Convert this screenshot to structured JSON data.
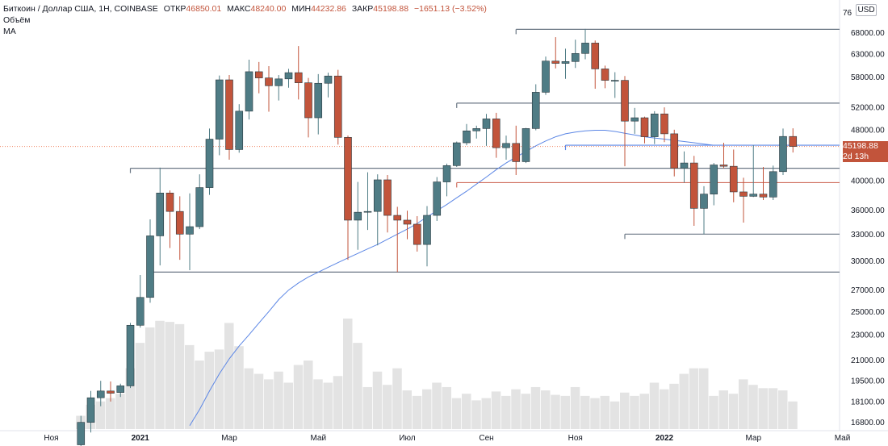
{
  "legend": {
    "symbol": "Биткоин / Доллар США, 1Н, COINBASE",
    "open_label": "ОТКР",
    "open_value": "46850.01",
    "high_label": "МАКС",
    "high_value": "48240.00",
    "low_label": "МИН",
    "low_value": "44232.86",
    "close_label": "ЗАКР",
    "close_value": "45198.88",
    "change_value": "−1651.13 (−3.52%)",
    "volume_label": "Объём",
    "ma_label": "МА"
  },
  "currency_button": "USD",
  "price_tag": {
    "price": "45198.88",
    "countdown": "2d 13h"
  },
  "colors": {
    "up": "#4f7c85",
    "down": "#c2543b",
    "ma": "#5b86e5",
    "volume": "#e3e3e3",
    "hline_gray": "#6b7785",
    "hline_red": "#d07060",
    "current_price": "#f08866"
  },
  "chart_data": {
    "type": "candlestick",
    "timeframe": "1W",
    "y_axis": {
      "scale": "log",
      "ticks": [
        16800,
        18100,
        19500,
        21000,
        23000,
        25000,
        27000,
        30000,
        33000,
        36000,
        40000,
        44000,
        48000,
        52000,
        58000,
        63000,
        68000
      ],
      "tick_labels": [
        "16800.00",
        "18100.00",
        "19500.00",
        "21000.00",
        "23000.00",
        "25000.00",
        "27000.00",
        "30000.00",
        "33000.00",
        "36000.00",
        "40000.00",
        "44000.00",
        "48000.00",
        "52000.00",
        "58000.00",
        "63000.00",
        "68000.00"
      ],
      "top_partial_label": "76",
      "range": [
        16400,
        76000
      ]
    },
    "x_axis": {
      "tick_labels": [
        "Ноя",
        "2021",
        "Мар",
        "Май",
        "Июл",
        "Сен",
        "Ноя",
        "2022",
        "Мар",
        "Май"
      ],
      "tick_weeks": [
        4,
        13,
        22,
        31,
        40,
        48,
        57,
        66,
        75,
        84
      ]
    },
    "candles": [
      {
        "o": 15500,
        "h": 17200,
        "l": 15300,
        "c": 16800
      },
      {
        "o": 16800,
        "h": 18800,
        "l": 16200,
        "c": 18350
      },
      {
        "o": 18350,
        "h": 19500,
        "l": 17800,
        "c": 18800
      },
      {
        "o": 18800,
        "h": 19450,
        "l": 18100,
        "c": 18650
      },
      {
        "o": 18700,
        "h": 19300,
        "l": 18400,
        "c": 19150
      },
      {
        "o": 19150,
        "h": 24000,
        "l": 19000,
        "c": 23800
      },
      {
        "o": 23800,
        "h": 28500,
        "l": 23600,
        "c": 26300
      },
      {
        "o": 26300,
        "h": 34800,
        "l": 25800,
        "c": 32800
      },
      {
        "o": 32800,
        "h": 41900,
        "l": 29500,
        "c": 38250
      },
      {
        "o": 38250,
        "h": 38600,
        "l": 31400,
        "c": 35800
      },
      {
        "o": 35800,
        "h": 37800,
        "l": 30100,
        "c": 33000
      },
      {
        "o": 33000,
        "h": 38200,
        "l": 29000,
        "c": 33900
      },
      {
        "o": 33900,
        "h": 40900,
        "l": 33600,
        "c": 39000
      },
      {
        "o": 39000,
        "h": 48200,
        "l": 38000,
        "c": 46400
      },
      {
        "o": 46400,
        "h": 58300,
        "l": 43800,
        "c": 57400
      },
      {
        "o": 57400,
        "h": 58400,
        "l": 43100,
        "c": 44700
      },
      {
        "o": 44700,
        "h": 52600,
        "l": 44200,
        "c": 51300
      },
      {
        "o": 51300,
        "h": 61700,
        "l": 49800,
        "c": 59100
      },
      {
        "o": 59100,
        "h": 61200,
        "l": 54700,
        "c": 57800
      },
      {
        "o": 57800,
        "h": 60300,
        "l": 51200,
        "c": 56200
      },
      {
        "o": 56200,
        "h": 58400,
        "l": 53300,
        "c": 57600
      },
      {
        "o": 57600,
        "h": 59700,
        "l": 55800,
        "c": 58900
      },
      {
        "o": 58900,
        "h": 64800,
        "l": 53500,
        "c": 56800
      },
      {
        "o": 56800,
        "h": 57800,
        "l": 46700,
        "c": 50100
      },
      {
        "o": 50100,
        "h": 58600,
        "l": 47200,
        "c": 56700
      },
      {
        "o": 56700,
        "h": 58900,
        "l": 53900,
        "c": 58200
      },
      {
        "o": 58200,
        "h": 59500,
        "l": 45500,
        "c": 46700
      },
      {
        "o": 46700,
        "h": 47000,
        "l": 30100,
        "c": 34700
      },
      {
        "o": 34700,
        "h": 39800,
        "l": 31200,
        "c": 35700
      },
      {
        "o": 35700,
        "h": 41200,
        "l": 33500,
        "c": 35800
      },
      {
        "o": 35800,
        "h": 40900,
        "l": 31700,
        "c": 40100
      },
      {
        "o": 40100,
        "h": 40800,
        "l": 33200,
        "c": 35300
      },
      {
        "o": 35300,
        "h": 36400,
        "l": 28800,
        "c": 34700
      },
      {
        "o": 34700,
        "h": 35900,
        "l": 32400,
        "c": 34200
      },
      {
        "o": 34200,
        "h": 35200,
        "l": 31000,
        "c": 31800
      },
      {
        "o": 31800,
        "h": 36500,
        "l": 29400,
        "c": 35300
      },
      {
        "o": 35300,
        "h": 40500,
        "l": 34600,
        "c": 39800
      },
      {
        "o": 39800,
        "h": 42500,
        "l": 37800,
        "c": 42200
      },
      {
        "o": 42200,
        "h": 46000,
        "l": 42000,
        "c": 45800
      },
      {
        "o": 45800,
        "h": 49000,
        "l": 45400,
        "c": 47800
      },
      {
        "o": 47800,
        "h": 48700,
        "l": 46500,
        "c": 48200
      },
      {
        "o": 48200,
        "h": 50800,
        "l": 45300,
        "c": 49900
      },
      {
        "o": 49900,
        "h": 51000,
        "l": 43400,
        "c": 45000
      },
      {
        "o": 45000,
        "h": 47000,
        "l": 43100,
        "c": 45700
      },
      {
        "o": 45700,
        "h": 48700,
        "l": 40800,
        "c": 42800
      },
      {
        "o": 42800,
        "h": 48300,
        "l": 42600,
        "c": 48200
      },
      {
        "o": 48200,
        "h": 56500,
        "l": 47900,
        "c": 54900
      },
      {
        "o": 54900,
        "h": 62400,
        "l": 54400,
        "c": 61400
      },
      {
        "o": 61400,
        "h": 66900,
        "l": 59800,
        "c": 60900
      },
      {
        "o": 60900,
        "h": 64200,
        "l": 57600,
        "c": 61300
      },
      {
        "o": 61300,
        "h": 66300,
        "l": 59900,
        "c": 63100
      },
      {
        "o": 63100,
        "h": 68900,
        "l": 61800,
        "c": 65500
      },
      {
        "o": 65500,
        "h": 66100,
        "l": 55600,
        "c": 59700
      },
      {
        "o": 59700,
        "h": 60400,
        "l": 55700,
        "c": 57300
      },
      {
        "o": 57300,
        "h": 59000,
        "l": 53800,
        "c": 57300
      },
      {
        "o": 57300,
        "h": 58200,
        "l": 42100,
        "c": 49500
      },
      {
        "o": 49500,
        "h": 51900,
        "l": 47300,
        "c": 50100
      },
      {
        "o": 50100,
        "h": 50300,
        "l": 45700,
        "c": 46800
      },
      {
        "o": 46800,
        "h": 51300,
        "l": 45600,
        "c": 50800
      },
      {
        "o": 50800,
        "h": 52000,
        "l": 45900,
        "c": 47300
      },
      {
        "o": 47300,
        "h": 48000,
        "l": 40600,
        "c": 41800
      },
      {
        "o": 41800,
        "h": 44400,
        "l": 39700,
        "c": 42600
      },
      {
        "o": 42600,
        "h": 43700,
        "l": 34000,
        "c": 36200
      },
      {
        "o": 36200,
        "h": 39200,
        "l": 33000,
        "c": 38100
      },
      {
        "o": 38100,
        "h": 42600,
        "l": 36600,
        "c": 42300
      },
      {
        "o": 42300,
        "h": 45800,
        "l": 41800,
        "c": 42100
      },
      {
        "o": 42100,
        "h": 44700,
        "l": 37000,
        "c": 38400
      },
      {
        "o": 38400,
        "h": 40400,
        "l": 34400,
        "c": 37800
      },
      {
        "o": 37800,
        "h": 45400,
        "l": 37700,
        "c": 38100
      },
      {
        "o": 38100,
        "h": 42000,
        "l": 37300,
        "c": 37700
      },
      {
        "o": 37700,
        "h": 42200,
        "l": 37300,
        "c": 41300
      },
      {
        "o": 41300,
        "h": 48200,
        "l": 40800,
        "c": 46850
      },
      {
        "o": 46850,
        "h": 48240,
        "l": 44232.86,
        "c": 45198.88
      }
    ],
    "volume_relative": [
      0.12,
      0.22,
      0.25,
      0.28,
      0.32,
      0.55,
      0.78,
      0.92,
      0.98,
      0.97,
      0.95,
      0.76,
      0.62,
      0.7,
      0.72,
      0.96,
      0.75,
      0.55,
      0.5,
      0.45,
      0.52,
      0.42,
      0.58,
      0.62,
      0.45,
      0.42,
      0.48,
      1.0,
      0.78,
      0.38,
      0.52,
      0.4,
      0.55,
      0.35,
      0.3,
      0.36,
      0.42,
      0.38,
      0.28,
      0.32,
      0.26,
      0.28,
      0.34,
      0.3,
      0.36,
      0.32,
      0.38,
      0.35,
      0.31,
      0.3,
      0.38,
      0.3,
      0.28,
      0.3,
      0.25,
      0.33,
      0.3,
      0.32,
      0.42,
      0.36,
      0.41,
      0.5,
      0.55,
      0.55,
      0.3,
      0.35,
      0.32,
      0.45,
      0.4,
      0.37,
      0.37,
      0.35,
      0.25
    ],
    "horizontal_levels": [
      {
        "price": 68800,
        "from": 51,
        "to": 86,
        "color": "gray"
      },
      {
        "price": 52800,
        "from": 45,
        "to": 86,
        "color": "gray"
      },
      {
        "price": 41800,
        "from": 12,
        "to": 86,
        "color": "gray"
      },
      {
        "price": 28800,
        "from": 14,
        "to": 86,
        "color": "gray"
      },
      {
        "price": 33000,
        "from": 62,
        "to": 86,
        "color": "gray"
      },
      {
        "price": 39700,
        "from": 45,
        "to": 86,
        "color": "red"
      },
      {
        "price": 45400,
        "from": 56,
        "to": 86,
        "color": "blue"
      }
    ],
    "moving_average": [
      {
        "week": 18,
        "v": 16600
      },
      {
        "week": 19,
        "v": 17600
      },
      {
        "week": 20,
        "v": 18800
      },
      {
        "week": 21,
        "v": 20000
      },
      {
        "week": 22,
        "v": 21100
      },
      {
        "week": 23,
        "v": 22100
      },
      {
        "week": 24,
        "v": 23000
      },
      {
        "week": 25,
        "v": 24000
      },
      {
        "week": 26,
        "v": 25000
      },
      {
        "week": 27,
        "v": 26100
      },
      {
        "week": 28,
        "v": 27000
      },
      {
        "week": 29,
        "v": 27700
      },
      {
        "week": 30,
        "v": 28300
      },
      {
        "week": 31,
        "v": 28800
      },
      {
        "week": 32,
        "v": 29300
      },
      {
        "week": 33,
        "v": 29800
      },
      {
        "week": 34,
        "v": 30300
      },
      {
        "week": 35,
        "v": 30800
      },
      {
        "week": 36,
        "v": 31300
      },
      {
        "week": 37,
        "v": 31800
      },
      {
        "week": 38,
        "v": 32400
      },
      {
        "week": 39,
        "v": 33000
      },
      {
        "week": 40,
        "v": 33600
      },
      {
        "week": 41,
        "v": 34300
      },
      {
        "week": 42,
        "v": 35100
      },
      {
        "week": 43,
        "v": 35900
      },
      {
        "week": 44,
        "v": 36700
      },
      {
        "week": 45,
        "v": 37600
      },
      {
        "week": 46,
        "v": 38500
      },
      {
        "week": 47,
        "v": 39500
      },
      {
        "week": 48,
        "v": 40500
      },
      {
        "week": 49,
        "v": 41600
      },
      {
        "week": 50,
        "v": 42600
      },
      {
        "week": 51,
        "v": 43500
      },
      {
        "week": 52,
        "v": 44400
      },
      {
        "week": 53,
        "v": 45300
      },
      {
        "week": 54,
        "v": 46100
      },
      {
        "week": 55,
        "v": 46800
      },
      {
        "week": 56,
        "v": 47300
      },
      {
        "week": 57,
        "v": 47600
      },
      {
        "week": 58,
        "v": 47800
      },
      {
        "week": 59,
        "v": 47900
      },
      {
        "week": 60,
        "v": 47900
      },
      {
        "week": 61,
        "v": 47700
      },
      {
        "week": 62,
        "v": 47400
      },
      {
        "week": 63,
        "v": 47100
      },
      {
        "week": 64,
        "v": 46800
      },
      {
        "week": 65,
        "v": 46600
      },
      {
        "week": 66,
        "v": 46400
      },
      {
        "week": 67,
        "v": 46200
      },
      {
        "week": 68,
        "v": 46000
      },
      {
        "week": 69,
        "v": 45800
      },
      {
        "week": 70,
        "v": 45600
      },
      {
        "week": 71,
        "v": 45400
      }
    ],
    "current_price": 45198.88
  }
}
